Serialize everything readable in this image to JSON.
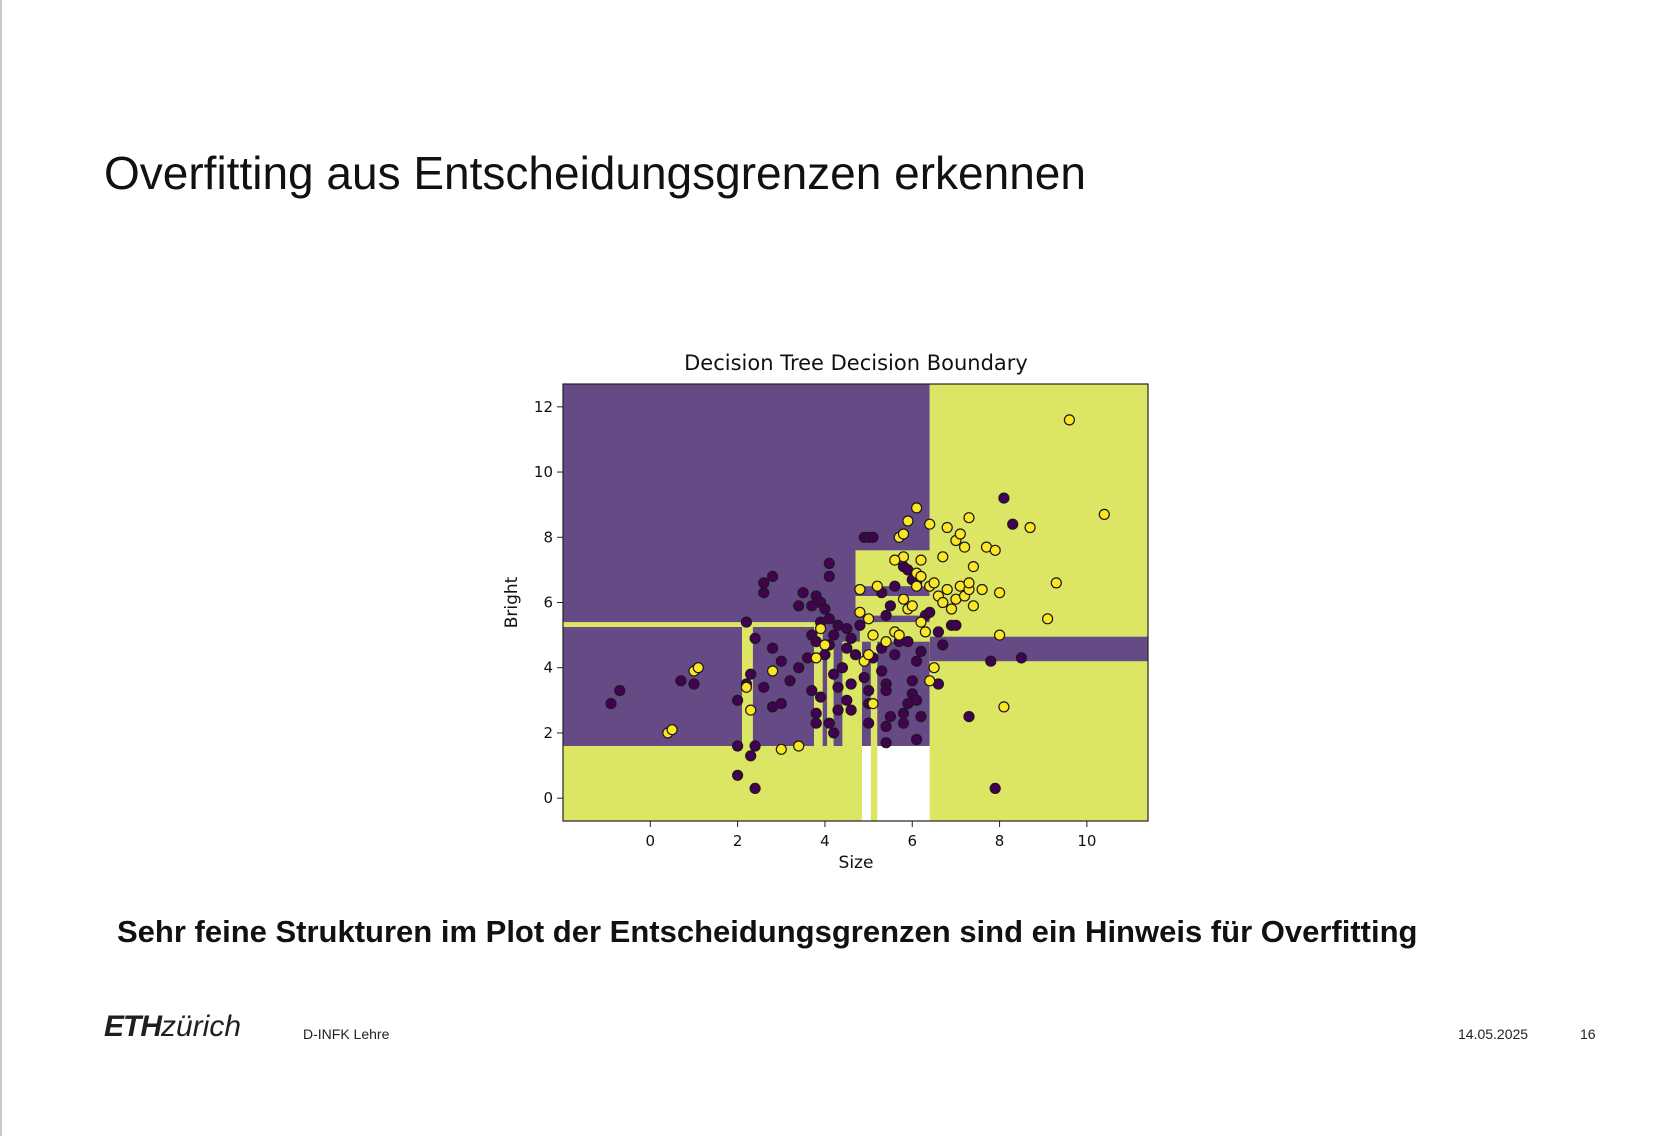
{
  "slide": {
    "title": "Overfitting aus Entscheidungsgrenzen erkennen",
    "caption": "Sehr feine Strukturen im Plot der Entscheidungsgrenzen sind ein Hinweis für Overfitting"
  },
  "footer": {
    "logo_bold": "ETH",
    "logo_rest": "zürich",
    "department": "D-INFK Lehre",
    "date": "14.05.2025",
    "page": "16"
  },
  "colors": {
    "class0_region": "#654a85",
    "class1_region": "#dce564",
    "class0_point": "#440154",
    "class1_point": "#fde725"
  },
  "chart_data": {
    "type": "scatter",
    "title": "Decision Tree Decision Boundary",
    "xlabel": "Size",
    "ylabel": "Bright",
    "xlim": [
      -2.0,
      11.4
    ],
    "ylim": [
      -0.7,
      12.7
    ],
    "xticks": [
      0,
      2,
      4,
      6,
      8,
      10
    ],
    "yticks": [
      0,
      2,
      4,
      6,
      8,
      10,
      12
    ],
    "grid": false,
    "regions": [
      {
        "class": 0,
        "x0": -2.0,
        "x1": 6.4,
        "y0": 1.6,
        "y1": 12.7
      },
      {
        "class": 1,
        "x0": 6.4,
        "x1": 11.4,
        "y0": -0.7,
        "y1": 12.7
      },
      {
        "class": 1,
        "x0": -2.0,
        "x1": 4.7,
        "y0": -0.7,
        "y1": 1.6
      },
      {
        "class": 1,
        "x0": 4.7,
        "x1": 4.85,
        "y0": -0.7,
        "y1": 4.8
      },
      {
        "class": 1,
        "x0": 5.05,
        "x1": 5.2,
        "y0": -0.7,
        "y1": 4.8
      },
      {
        "class": 0,
        "x0": 6.4,
        "x1": 11.4,
        "y0": 4.2,
        "y1": 4.95
      },
      {
        "class": 1,
        "x0": -2.0,
        "x1": 3.9,
        "y0": 5.25,
        "y1": 5.4
      },
      {
        "class": 1,
        "x0": 2.1,
        "x1": 2.35,
        "y0": 1.6,
        "y1": 5.3
      },
      {
        "class": 1,
        "x0": 3.75,
        "x1": 3.95,
        "y0": 1.6,
        "y1": 5.3
      },
      {
        "class": 1,
        "x0": 4.05,
        "x1": 4.2,
        "y0": 1.6,
        "y1": 4.8
      },
      {
        "class": 1,
        "x0": 4.4,
        "x1": 4.7,
        "y0": 1.6,
        "y1": 4.8
      },
      {
        "class": 1,
        "x0": 4.7,
        "x1": 6.4,
        "y0": 6.5,
        "y1": 7.6
      },
      {
        "class": 1,
        "x0": 4.7,
        "x1": 6.4,
        "y0": 5.6,
        "y1": 6.2
      },
      {
        "class": 1,
        "x0": 4.8,
        "x1": 6.4,
        "y0": 4.8,
        "y1": 5.4
      }
    ],
    "series": [
      {
        "name": "0",
        "class": 0,
        "points": [
          [
            -0.9,
            2.9
          ],
          [
            -0.7,
            3.3
          ],
          [
            0.7,
            3.6
          ],
          [
            1.0,
            3.5
          ],
          [
            2.0,
            0.7
          ],
          [
            2.0,
            1.6
          ],
          [
            2.3,
            1.3
          ],
          [
            2.4,
            1.6
          ],
          [
            2.4,
            0.3
          ],
          [
            2.0,
            3.0
          ],
          [
            2.2,
            3.5
          ],
          [
            2.3,
            3.8
          ],
          [
            2.4,
            4.9
          ],
          [
            2.2,
            5.4
          ],
          [
            2.6,
            3.4
          ],
          [
            2.8,
            2.8
          ],
          [
            3.0,
            2.9
          ],
          [
            2.8,
            4.6
          ],
          [
            3.0,
            4.2
          ],
          [
            3.2,
            3.6
          ],
          [
            3.4,
            4.0
          ],
          [
            3.6,
            4.3
          ],
          [
            3.7,
            3.3
          ],
          [
            3.8,
            2.6
          ],
          [
            3.8,
            2.3
          ],
          [
            3.9,
            3.1
          ],
          [
            4.1,
            2.3
          ],
          [
            4.2,
            2.0
          ],
          [
            4.3,
            2.7
          ],
          [
            4.3,
            3.4
          ],
          [
            4.2,
            3.8
          ],
          [
            4.4,
            4.0
          ],
          [
            4.5,
            4.6
          ],
          [
            4.6,
            3.5
          ],
          [
            4.7,
            4.4
          ],
          [
            4.5,
            3.0
          ],
          [
            4.6,
            2.7
          ],
          [
            2.6,
            6.3
          ],
          [
            2.6,
            6.6
          ],
          [
            2.8,
            6.8
          ],
          [
            3.4,
            5.9
          ],
          [
            3.5,
            6.3
          ],
          [
            3.7,
            5.9
          ],
          [
            3.8,
            6.2
          ],
          [
            3.9,
            6.0
          ],
          [
            3.9,
            5.4
          ],
          [
            4.0,
            5.8
          ],
          [
            4.1,
            5.5
          ],
          [
            3.7,
            5.0
          ],
          [
            3.8,
            4.8
          ],
          [
            4.2,
            5.0
          ],
          [
            4.3,
            5.3
          ],
          [
            4.5,
            5.2
          ],
          [
            4.6,
            4.9
          ],
          [
            4.0,
            4.4
          ],
          [
            4.1,
            4.7
          ],
          [
            4.1,
            6.8
          ],
          [
            4.1,
            7.2
          ],
          [
            4.8,
            5.3
          ],
          [
            4.9,
            8.0
          ],
          [
            5.0,
            8.0
          ],
          [
            5.1,
            8.0
          ],
          [
            4.9,
            3.7
          ],
          [
            5.0,
            3.3
          ],
          [
            5.0,
            2.9
          ],
          [
            5.0,
            2.3
          ],
          [
            5.1,
            4.3
          ],
          [
            5.3,
            4.6
          ],
          [
            5.3,
            3.9
          ],
          [
            5.4,
            3.5
          ],
          [
            5.4,
            3.3
          ],
          [
            5.5,
            2.5
          ],
          [
            5.4,
            2.2
          ],
          [
            5.4,
            1.7
          ],
          [
            5.8,
            2.6
          ],
          [
            5.8,
            2.3
          ],
          [
            5.9,
            2.9
          ],
          [
            6.0,
            3.2
          ],
          [
            6.1,
            3.0
          ],
          [
            6.0,
            3.6
          ],
          [
            6.1,
            1.8
          ],
          [
            6.2,
            2.5
          ],
          [
            6.1,
            4.2
          ],
          [
            6.2,
            4.5
          ],
          [
            5.9,
            4.8
          ],
          [
            5.6,
            4.4
          ],
          [
            5.7,
            4.8
          ],
          [
            5.3,
            6.3
          ],
          [
            5.4,
            5.6
          ],
          [
            5.5,
            5.9
          ],
          [
            5.6,
            6.5
          ],
          [
            5.8,
            7.1
          ],
          [
            5.9,
            7.0
          ],
          [
            6.0,
            6.7
          ],
          [
            6.1,
            6.6
          ],
          [
            6.3,
            5.6
          ],
          [
            6.4,
            5.7
          ],
          [
            6.6,
            5.1
          ],
          [
            6.7,
            4.7
          ],
          [
            6.9,
            5.3
          ],
          [
            7.0,
            5.3
          ],
          [
            6.6,
            3.5
          ],
          [
            7.3,
            2.5
          ],
          [
            7.8,
            4.2
          ],
          [
            7.9,
            0.3
          ],
          [
            8.1,
            9.2
          ],
          [
            8.3,
            8.4
          ],
          [
            8.5,
            4.3
          ]
        ]
      },
      {
        "name": "1",
        "class": 1,
        "points": [
          [
            0.4,
            2.0
          ],
          [
            0.5,
            2.1
          ],
          [
            1.0,
            3.9
          ],
          [
            1.1,
            4.0
          ],
          [
            2.2,
            3.4
          ],
          [
            2.3,
            2.7
          ],
          [
            2.8,
            3.9
          ],
          [
            3.0,
            1.5
          ],
          [
            3.4,
            1.6
          ],
          [
            3.8,
            4.3
          ],
          [
            3.9,
            5.2
          ],
          [
            4.0,
            4.7
          ],
          [
            4.8,
            6.4
          ],
          [
            4.8,
            5.7
          ],
          [
            4.9,
            4.2
          ],
          [
            5.0,
            5.5
          ],
          [
            5.0,
            4.4
          ],
          [
            5.1,
            5.0
          ],
          [
            5.2,
            6.5
          ],
          [
            5.1,
            2.9
          ],
          [
            5.4,
            4.8
          ],
          [
            5.6,
            5.1
          ],
          [
            5.7,
            5.0
          ],
          [
            5.8,
            6.1
          ],
          [
            5.8,
            7.4
          ],
          [
            5.6,
            7.3
          ],
          [
            5.9,
            5.8
          ],
          [
            6.0,
            5.9
          ],
          [
            6.1,
            6.9
          ],
          [
            6.2,
            6.8
          ],
          [
            6.2,
            5.4
          ],
          [
            6.3,
            5.1
          ],
          [
            5.7,
            8.0
          ],
          [
            5.8,
            8.1
          ],
          [
            5.9,
            8.5
          ],
          [
            6.1,
            8.9
          ],
          [
            6.1,
            6.5
          ],
          [
            6.2,
            7.3
          ],
          [
            6.4,
            6.5
          ],
          [
            6.5,
            6.6
          ],
          [
            6.6,
            6.2
          ],
          [
            6.7,
            6.0
          ],
          [
            6.8,
            6.4
          ],
          [
            6.9,
            5.8
          ],
          [
            7.0,
            6.1
          ],
          [
            7.1,
            6.5
          ],
          [
            7.2,
            6.2
          ],
          [
            7.3,
            6.4
          ],
          [
            6.4,
            3.6
          ],
          [
            6.5,
            4.0
          ],
          [
            6.4,
            8.4
          ],
          [
            6.7,
            7.4
          ],
          [
            6.8,
            8.3
          ],
          [
            7.0,
            7.9
          ],
          [
            7.1,
            8.1
          ],
          [
            7.2,
            7.7
          ],
          [
            7.3,
            6.6
          ],
          [
            7.4,
            7.1
          ],
          [
            7.4,
            5.9
          ],
          [
            7.6,
            6.4
          ],
          [
            7.3,
            8.6
          ],
          [
            7.7,
            7.7
          ],
          [
            7.9,
            7.6
          ],
          [
            8.0,
            6.3
          ],
          [
            8.0,
            5.0
          ],
          [
            8.1,
            2.8
          ],
          [
            8.7,
            8.3
          ],
          [
            9.1,
            5.5
          ],
          [
            9.3,
            6.6
          ],
          [
            9.6,
            11.6
          ],
          [
            10.4,
            8.7
          ]
        ]
      }
    ]
  }
}
